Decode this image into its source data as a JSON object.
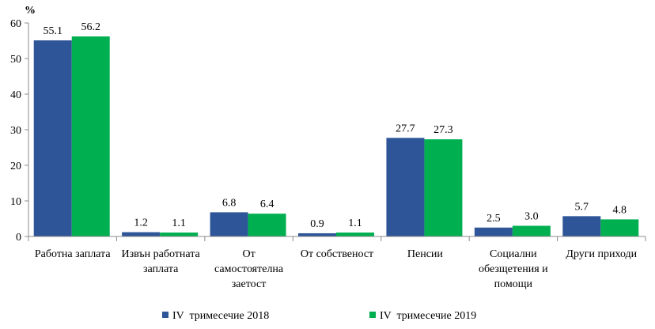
{
  "chart_data": {
    "type": "bar",
    "ylabel": "%",
    "ylim": [
      0,
      60
    ],
    "yticks": [
      0,
      10,
      20,
      30,
      40,
      50,
      60
    ],
    "grid": false,
    "legend_position": "bottom",
    "categories": [
      [
        "Работна заплата"
      ],
      [
        "Извън работната",
        "заплата"
      ],
      [
        "От",
        "самостоятелна",
        "заетост"
      ],
      [
        "От собственост"
      ],
      [
        "Пенсии"
      ],
      [
        "Социални",
        "обезщетения и",
        "помощи"
      ],
      [
        "Други приходи"
      ]
    ],
    "series": [
      {
        "name": "IV  тримесечие 2018",
        "color": "#2e5597",
        "values": [
          55.1,
          1.2,
          6.8,
          0.9,
          27.7,
          2.5,
          5.7
        ],
        "labels": [
          "55.1",
          "1.2",
          "6.8",
          "0.9",
          "27.7",
          "2.5",
          "5.7"
        ]
      },
      {
        "name": "IV  тримесечие 2019",
        "color": "#00af50",
        "values": [
          56.2,
          1.1,
          6.4,
          1.1,
          27.3,
          3.0,
          4.8
        ],
        "labels": [
          "56.2",
          "1.1",
          "6.4",
          "1.1",
          "27.3",
          "3.0",
          "4.8"
        ]
      }
    ]
  }
}
